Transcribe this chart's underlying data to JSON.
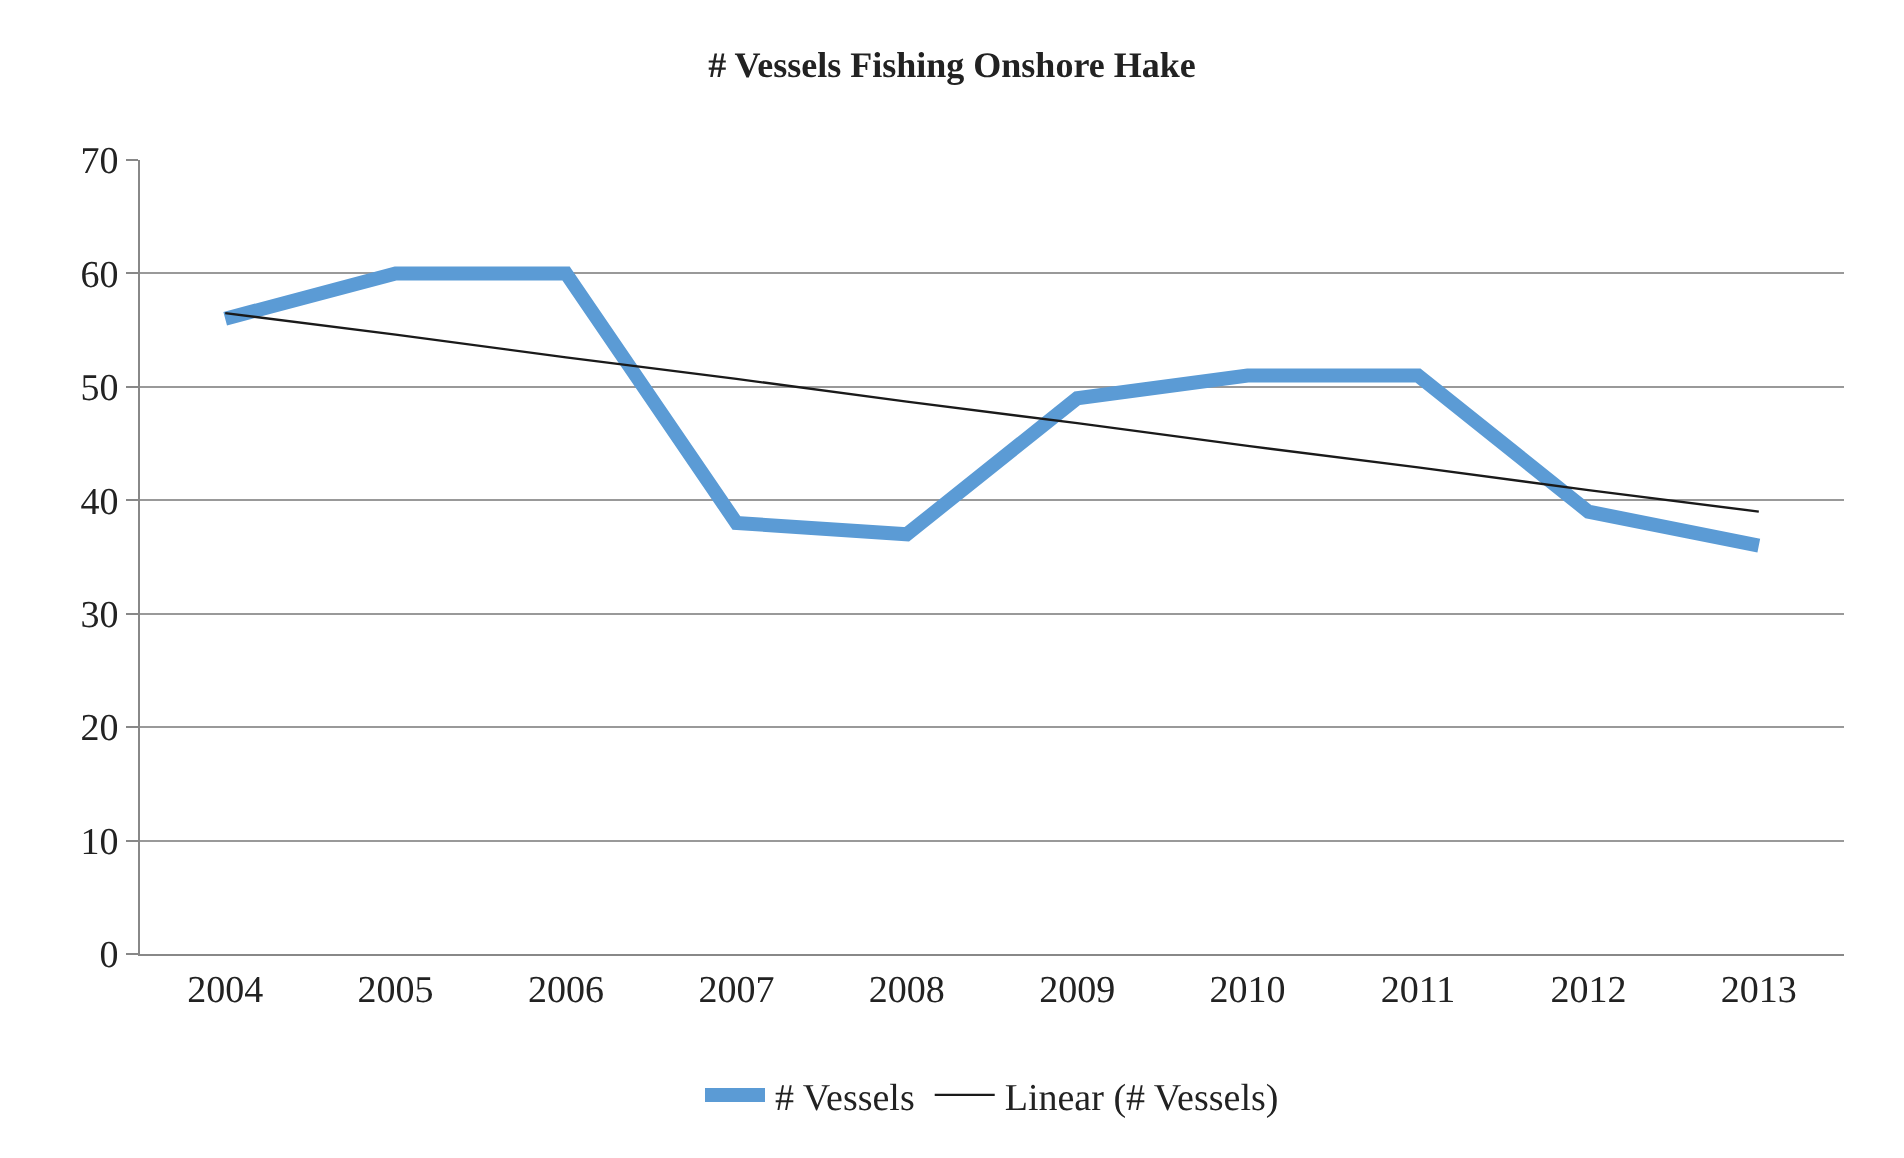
{
  "chart_data": {
    "type": "line",
    "title": "# Vessels Fishing Onshore Hake",
    "categories": [
      "2004",
      "2005",
      "2006",
      "2007",
      "2008",
      "2009",
      "2010",
      "2011",
      "2012",
      "2013"
    ],
    "series": [
      {
        "name": "# Vessels",
        "color": "#5b9bd5",
        "values": [
          56,
          60,
          60,
          38,
          37,
          49,
          51,
          51,
          39,
          36
        ]
      },
      {
        "name": "Linear (# Vessels)",
        "color": "#1a1a1a",
        "type": "line",
        "values": [
          56.5,
          54.6,
          52.6,
          50.7,
          48.7,
          46.8,
          44.8,
          42.9,
          40.9,
          39
        ]
      }
    ],
    "ylim": [
      0,
      70
    ],
    "yticks": [
      0,
      10,
      20,
      30,
      40,
      50,
      60,
      70
    ],
    "grid": "y",
    "legend": "bottom",
    "marker": "none"
  }
}
